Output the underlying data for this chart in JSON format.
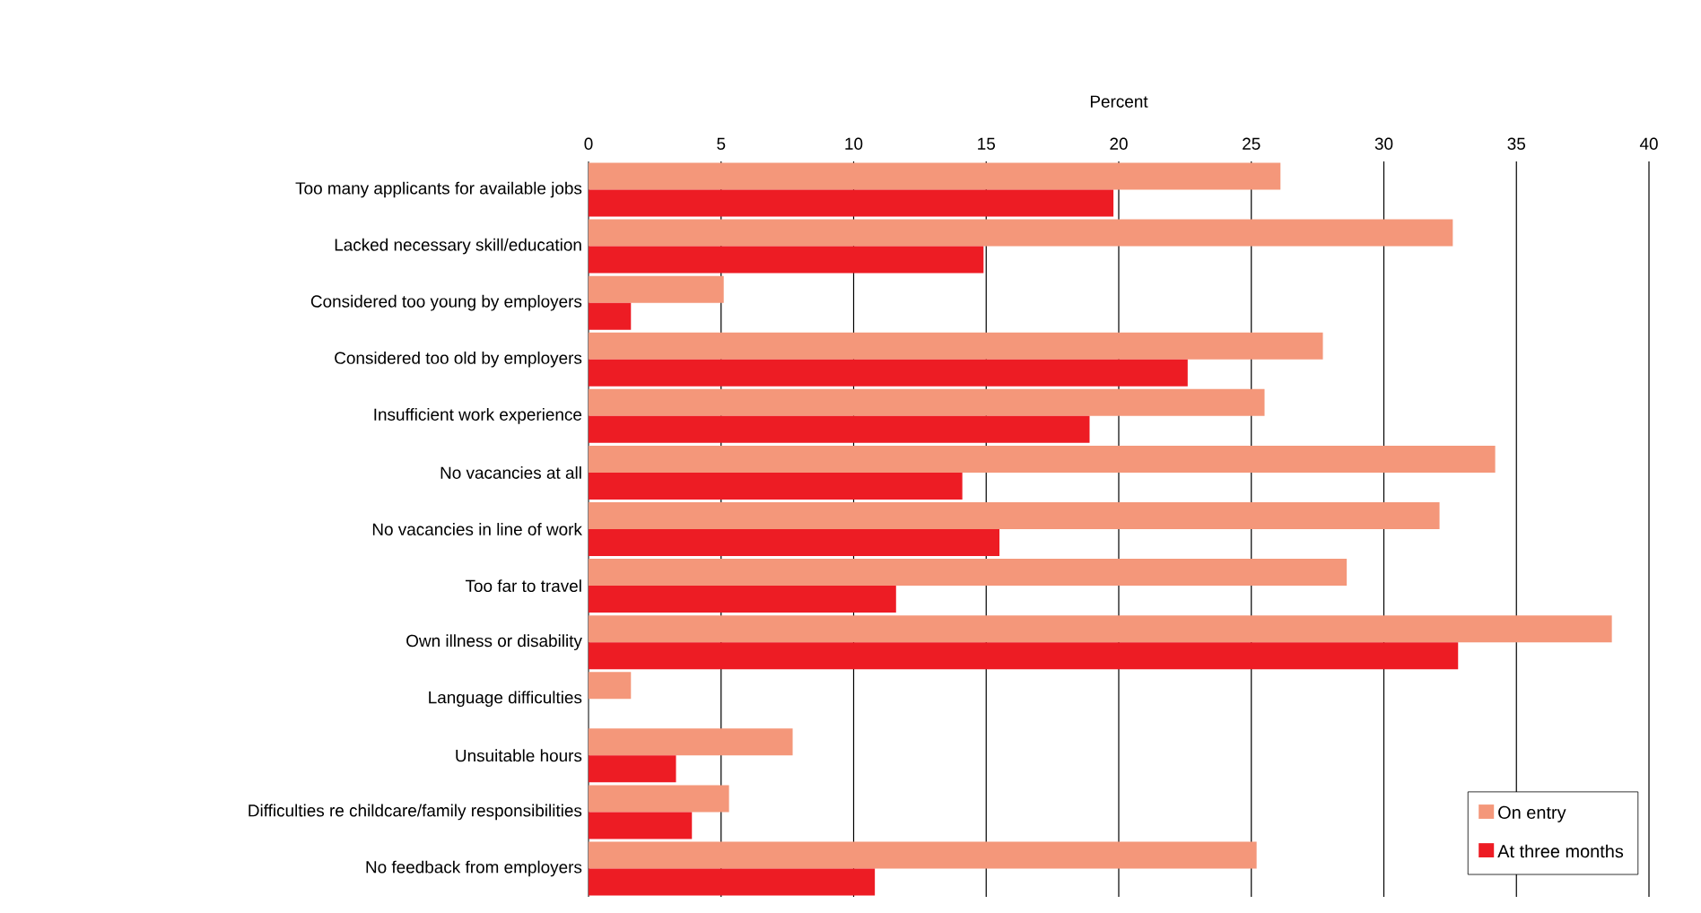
{
  "chart_data": {
    "type": "bar",
    "orientation": "horizontal",
    "xlabel": "Percent",
    "categories": [
      "Too many applicants for available jobs",
      "Lacked necessary skill/education",
      "Considered too young by employers",
      "Considered too old by employers",
      "Insufficient work experience",
      "No vacancies at all",
      "No vacancies in line of work",
      "Too far to travel",
      "Own illness or disability",
      "Language difficulties",
      "Unsuitable hours",
      "Difficulties re childcare/family responsibilities",
      "No feedback from employers"
    ],
    "series": [
      {
        "name": "On entry",
        "color": "#f4977a",
        "values": [
          26.1,
          32.6,
          5.1,
          27.7,
          25.5,
          34.2,
          32.1,
          28.6,
          38.6,
          1.6,
          7.7,
          5.3,
          25.2
        ]
      },
      {
        "name": "At three months",
        "color": "#ed1c24",
        "values": [
          19.8,
          14.9,
          1.6,
          22.6,
          18.9,
          14.1,
          15.5,
          11.6,
          32.8,
          null,
          3.3,
          3.9,
          10.8
        ]
      }
    ],
    "xlim": [
      0,
      40
    ],
    "xticks": [
      0,
      5,
      10,
      15,
      20,
      25,
      30,
      35,
      40
    ],
    "grid": "x",
    "legend": "bottom right"
  }
}
